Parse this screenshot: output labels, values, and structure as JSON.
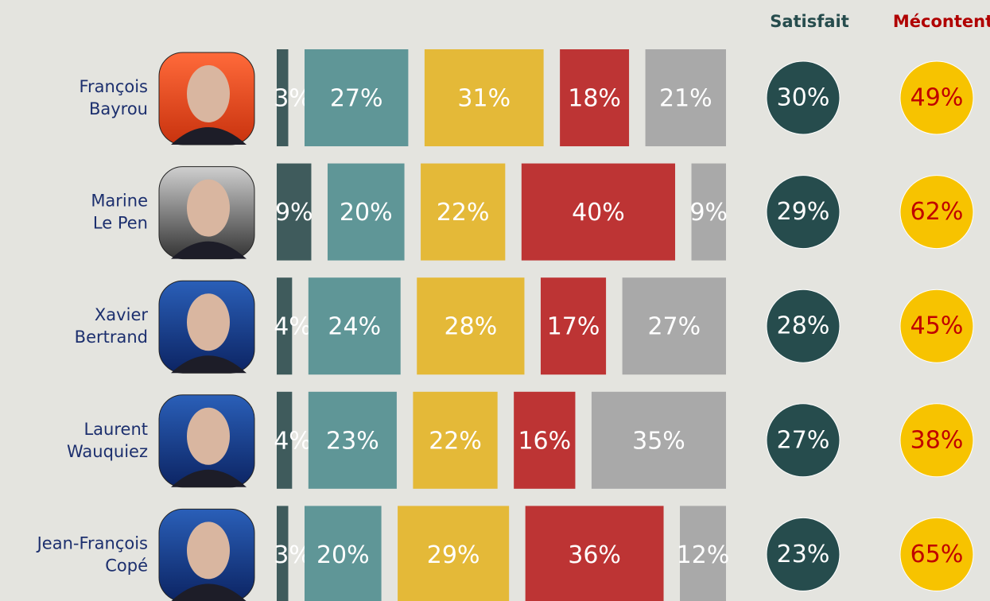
{
  "chart_data": {
    "type": "bar",
    "orientation": "horizontal",
    "stacked": true,
    "categories": [
      [
        "François",
        "Bayrou"
      ],
      [
        "Marine",
        "Le Pen"
      ],
      [
        "Xavier",
        "Bertrand"
      ],
      [
        "Laurent",
        "Wauquiez"
      ],
      [
        "Jean-François",
        "Copé"
      ]
    ],
    "series": [
      {
        "color": "#3f5b5c",
        "values": [
          3,
          9,
          4,
          4,
          3
        ],
        "value_labels": [
          "3%",
          "9%",
          "4%",
          "4%",
          "3%"
        ]
      },
      {
        "color": "#5f9697",
        "values": [
          27,
          20,
          24,
          23,
          20
        ],
        "value_labels": [
          "27%",
          "20%",
          "24%",
          "23%",
          "20%"
        ]
      },
      {
        "color": "#e4b938",
        "values": [
          31,
          22,
          28,
          22,
          29
        ],
        "value_labels": [
          "31%",
          "22%",
          "28%",
          "22%",
          "29%"
        ]
      },
      {
        "color": "#bd3434",
        "values": [
          18,
          40,
          17,
          16,
          36
        ],
        "value_labels": [
          "18%",
          "40%",
          "17%",
          "16%",
          "36%"
        ]
      },
      {
        "color": "#a9a9a9",
        "values": [
          21,
          9,
          27,
          35,
          12
        ],
        "value_labels": [
          "21%",
          "9%",
          "27%",
          "35%",
          "12%"
        ]
      }
    ],
    "indicators": [
      {
        "name": "Satisfait",
        "color": "#264c4d",
        "text_color": "#ffffff",
        "values": [
          30,
          29,
          28,
          27,
          23
        ],
        "value_labels": [
          "30%",
          "29%",
          "28%",
          "27%",
          "23%"
        ]
      },
      {
        "name": "Mécontent",
        "color": "#f7c300",
        "text_color": "#c00000",
        "values": [
          49,
          62,
          45,
          38,
          65
        ],
        "value_labels": [
          "49%",
          "62%",
          "45%",
          "38%",
          "65%"
        ]
      }
    ]
  }
}
